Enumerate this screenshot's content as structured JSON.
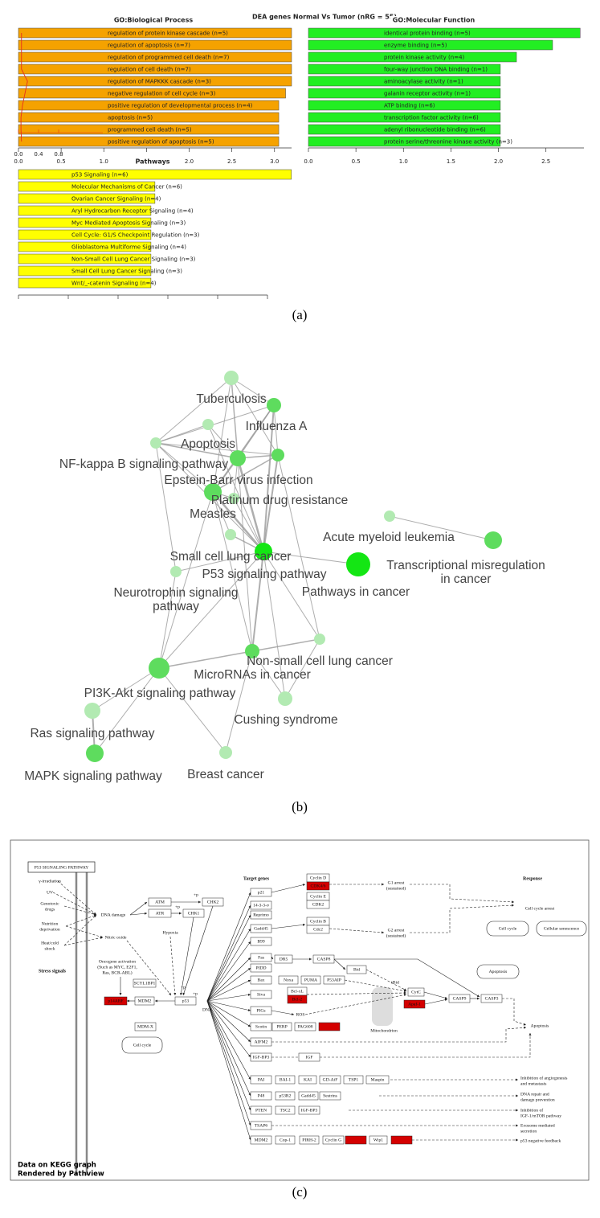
{
  "figure_title": "DEA genes Normal Vs Tumor (nRG = 55)",
  "panel_labels": [
    "(a)",
    "(b)",
    "(c)"
  ],
  "chart_data": [
    {
      "type": "barh",
      "title": "GO:Biological Process",
      "color": "#f5a200",
      "categories": [
        "regulation of protein kinase cascade (n=5)",
        "regulation of apoptosis (n=7)",
        "regulation of programmed cell death (n=7)",
        "regulation of cell death (n=7)",
        "regulation of MAPKKK cascade (n=3)",
        "negative regulation of cell cycle (n=3)",
        "positive regulation of developmental process (n=4)",
        "apoptosis (n=5)",
        "programmed cell death (n=5)",
        "positive regulation of apoptosis (n=5)"
      ],
      "values": [
        3.2,
        3.2,
        3.2,
        3.2,
        3.2,
        3.13,
        3.05,
        3.05,
        3.05,
        3.05
      ],
      "xlim": [
        0,
        3.2
      ],
      "xticks": [
        {
          "value": 0,
          "label": "0.0"
        },
        0.5,
        {
          "value": 1,
          "label": "1.0"
        },
        1.5,
        {
          "value": 2,
          "label": "2.0"
        },
        2.5,
        {
          "value": 3,
          "label": "3.0"
        }
      ],
      "ratio": {
        "color": "#e8301c",
        "values": [
          0.06,
          0.06,
          0.06,
          0.06,
          0.18,
          0.13,
          0.08,
          0.05,
          0.05,
          0.06
        ]
      },
      "x2lim": [
        0,
        1.68
      ],
      "x2ticks": [
        {
          "value": 0,
          "label": "0.0"
        },
        0.4,
        0.8
      ]
    },
    {
      "type": "barh",
      "title": "GO:Molecular Function",
      "color": "#22ee22",
      "categories": [
        "identical protein binding (n=5)",
        "enzyme binding (n=5)",
        "protein kinase activity (n=4)",
        "four-way junction DNA binding (n=1)",
        "aminoacylase activity (n=1)",
        "galanin receptor activity (n=1)",
        "ATP binding (n=6)",
        "transcription factor activity (n=6)",
        "adenyl ribonucleotide binding (n=6)",
        "protein serine/threonine kinase activity (n=3)"
      ],
      "values": [
        2.86,
        2.57,
        2.19,
        2.02,
        2.02,
        2.02,
        2.02,
        2.02,
        2.02,
        2.02
      ],
      "xlim": [
        0,
        2.9
      ],
      "xticks": [
        {
          "value": 0,
          "label": "0.0"
        },
        0.5,
        {
          "value": 1,
          "label": "1.0"
        },
        1.5,
        {
          "value": 2,
          "label": "2.0"
        },
        2.5
      ]
    },
    {
      "type": "barh",
      "title": "Pathways",
      "color": "#ffff00",
      "show_tick_labels": false,
      "categories": [
        "p53 Signaling (n=6)",
        "Molecular Mechanisms of Cancer (n=6)",
        "Ovarian Cancer Signaling (n=4)",
        "Aryl Hydrocarbon Receptor Signaling (n=4)",
        "Myc Mediated Apoptosis Signaling (n=3)",
        "Cell Cycle: G1/S Checkpoint Regulation (n=3)",
        "Glioblastoma Multiforme Signaling (n=4)",
        "Non-Small Cell Lung Cancer Signaling (n=3)",
        "Small Cell Lung Cancer Signaling (n=3)",
        "Wnt/_-catenin Signaling (n=4)"
      ],
      "values": [
        2.74,
        1.37,
        1.37,
        1.33,
        1.33,
        1.33,
        1.33,
        1.33,
        1.33,
        1.33
      ],
      "xlim": [
        0,
        2.5
      ],
      "xticks": [
        0,
        0.5,
        1,
        1.5,
        2,
        2.5
      ]
    }
  ],
  "network": {
    "labels": [
      "Tuberculosis",
      "Influenza A",
      "Apoptosis",
      "NF-kappa B signaling pathway",
      "Epstein-Barr virus infection",
      "Platinum drug resistance",
      "Measles",
      "Acute myeloid leukemia",
      "Small cell lung cancer",
      [
        "Transcriptional misregulation",
        "in cancer"
      ],
      "P53 signaling pathway",
      [
        "Neurotrophin signaling",
        "pathway"
      ],
      "Pathways in cancer",
      "Non-small cell lung cancer",
      "MicroRNAs in cancer",
      "PI3K-Akt signaling pathway",
      "Cushing syndrome",
      "Ras signaling pathway",
      "MAPK signaling pathway",
      "Breast cancer"
    ]
  },
  "kegg": {
    "title": "P53 SIGNALING PATHWAY",
    "highlight_color": "#d40000",
    "genes": [
      {
        "label": "ATM"
      },
      {
        "label": "ATR"
      },
      {
        "label": "CHK2"
      },
      {
        "label": "CHK1"
      },
      {
        "label": "SCYL1BP1"
      },
      {
        "label": "p14ARF",
        "highlighted": true
      },
      {
        "label": "MDM2"
      },
      {
        "label": "p53"
      },
      {
        "label": "MDM-X"
      },
      {
        "label": "p21"
      },
      {
        "label": "14-3-3-σ"
      },
      {
        "label": "Reprimo"
      },
      {
        "label": "Gadd45"
      },
      {
        "label": "B99"
      },
      {
        "label": "Fas"
      },
      {
        "label": "PIDD"
      },
      {
        "label": "Bax"
      },
      {
        "label": "Siva"
      },
      {
        "label": "PIGs"
      },
      {
        "label": "Scotin"
      },
      {
        "label": "AIFM2"
      },
      {
        "label": "IGF-BP3"
      },
      {
        "label": "PAI"
      },
      {
        "label": "P48"
      },
      {
        "label": "PTEN"
      },
      {
        "label": "TSAP6"
      },
      {
        "label": "MDM2"
      },
      {
        "label": "Cyclin D"
      },
      {
        "label": "CDK4/6",
        "highlighted": true
      },
      {
        "label": "Cyclin E"
      },
      {
        "label": "CDK2"
      },
      {
        "label": "Cyclin B"
      },
      {
        "label": "Cdc2"
      },
      {
        "label": "DR5"
      },
      {
        "label": "CASP8"
      },
      {
        "label": "Bid"
      },
      {
        "label": "Noxa"
      },
      {
        "label": "PUMA"
      },
      {
        "label": "P53AIP"
      },
      {
        "label": "Bcl-xL"
      },
      {
        "label": "Bcl-2",
        "highlighted": true
      },
      {
        "label": "CytC"
      },
      {
        "label": "Apaf-1",
        "highlighted": true
      },
      {
        "label": "CASP9"
      },
      {
        "label": "CASP3"
      },
      {
        "label": "PERP"
      },
      {
        "label": "PAG608"
      },
      {
        "highlighted": true
      },
      {
        "label": "IGF"
      },
      {
        "label": "BAI-1"
      },
      {
        "label": "KAI"
      },
      {
        "label": "GD-AiF"
      },
      {
        "label": "TSP1"
      },
      {
        "label": "Maspin"
      },
      {
        "label": "p53R2"
      },
      {
        "label": "Gadd45"
      },
      {
        "label": "Sestrins"
      },
      {
        "label": "TSC2"
      },
      {
        "label": "IGF-BP3"
      },
      {
        "label": "Cop-1"
      },
      {
        "label": "PIRH-2"
      },
      {
        "label": "Cyclin G"
      },
      {
        "highlighted": true
      },
      {
        "label": "Wip1"
      },
      {
        "highlighted": true
      }
    ],
    "texts": [
      "γ-irradiation",
      "UV",
      "Genotoxic",
      "drugs",
      "Nutrition",
      "deprivation",
      "Heat/cold",
      "shock",
      "DNA damage",
      "Hypoxia",
      "Nitric oxide",
      "Oncogene activation",
      "(Such as MYC, E2F1,",
      "Ras, BCR-ABL)",
      "DNA",
      "G1 arrest",
      "(sustained)",
      "G2 arrest",
      "(sustained)",
      "Cell cycle arrest",
      "Mitochondrion",
      "tBid",
      "ROS",
      "Apoptosis",
      "Inhibition of angiogenesis",
      "and metastasis",
      "DNA repair and",
      "damage prevention",
      "Inhibition of",
      "IGF-1/mTOR pathway",
      "Exosome mediated",
      "secretion",
      "p53 negative feedback",
      "+p",
      "+p",
      "+p",
      "+p"
    ],
    "headings": [
      "Stress signals",
      "Target genes",
      "Response"
    ],
    "pills": [
      "Cell cycle",
      "Cell cycle",
      "Cellular senescence",
      "Apoptosis"
    ],
    "footer": [
      "Data on KEGG graph",
      "Rendered by Pathview"
    ]
  }
}
